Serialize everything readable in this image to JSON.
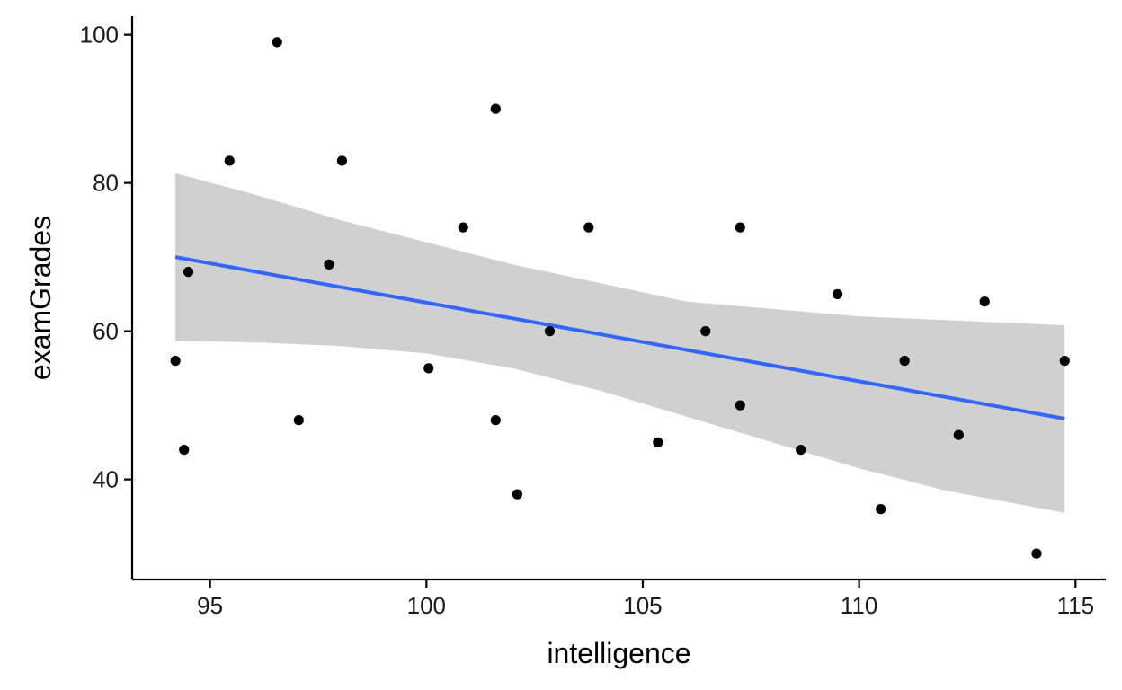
{
  "chart_data": {
    "type": "scatter",
    "title": "",
    "xlabel": "intelligence",
    "ylabel": "examGrades",
    "xlim": [
      93.2,
      115.7
    ],
    "ylim": [
      26.5,
      102.5
    ],
    "xticks": [
      95,
      100,
      105,
      110,
      115
    ],
    "yticks": [
      40,
      60,
      80,
      100
    ],
    "grid": false,
    "legend": "none",
    "points": [
      {
        "x": 94.2,
        "y": 56
      },
      {
        "x": 94.4,
        "y": 44
      },
      {
        "x": 94.5,
        "y": 68
      },
      {
        "x": 95.45,
        "y": 83
      },
      {
        "x": 96.55,
        "y": 99
      },
      {
        "x": 97.05,
        "y": 48
      },
      {
        "x": 97.75,
        "y": 69
      },
      {
        "x": 98.05,
        "y": 83
      },
      {
        "x": 100.05,
        "y": 55
      },
      {
        "x": 100.85,
        "y": 74
      },
      {
        "x": 101.6,
        "y": 90
      },
      {
        "x": 101.6,
        "y": 48
      },
      {
        "x": 102.1,
        "y": 38
      },
      {
        "x": 102.85,
        "y": 60
      },
      {
        "x": 103.75,
        "y": 74
      },
      {
        "x": 105.35,
        "y": 45
      },
      {
        "x": 106.45,
        "y": 60
      },
      {
        "x": 107.25,
        "y": 74
      },
      {
        "x": 107.25,
        "y": 50
      },
      {
        "x": 108.65,
        "y": 44
      },
      {
        "x": 109.5,
        "y": 65
      },
      {
        "x": 110.5,
        "y": 36
      },
      {
        "x": 111.05,
        "y": 56
      },
      {
        "x": 112.3,
        "y": 46
      },
      {
        "x": 112.9,
        "y": 64
      },
      {
        "x": 114.1,
        "y": 30
      },
      {
        "x": 114.75,
        "y": 56
      }
    ],
    "fit": {
      "method": "linear",
      "x": [
        94.2,
        114.75
      ],
      "y": [
        70,
        48.2
      ],
      "color": "#3366ff"
    },
    "confidence_band": {
      "color": "#d0d0d0",
      "x": [
        94.2,
        96,
        98,
        100,
        102,
        104,
        106,
        108,
        110,
        112,
        114.75
      ],
      "lower": [
        58.7,
        58.5,
        58,
        57,
        55,
        52,
        48.5,
        45,
        41.5,
        38.5,
        35.5
      ],
      "upper": [
        81.3,
        78.5,
        75,
        72,
        69,
        66.5,
        64,
        63,
        62,
        61.5,
        60.8
      ]
    },
    "point_color": "#000000"
  }
}
